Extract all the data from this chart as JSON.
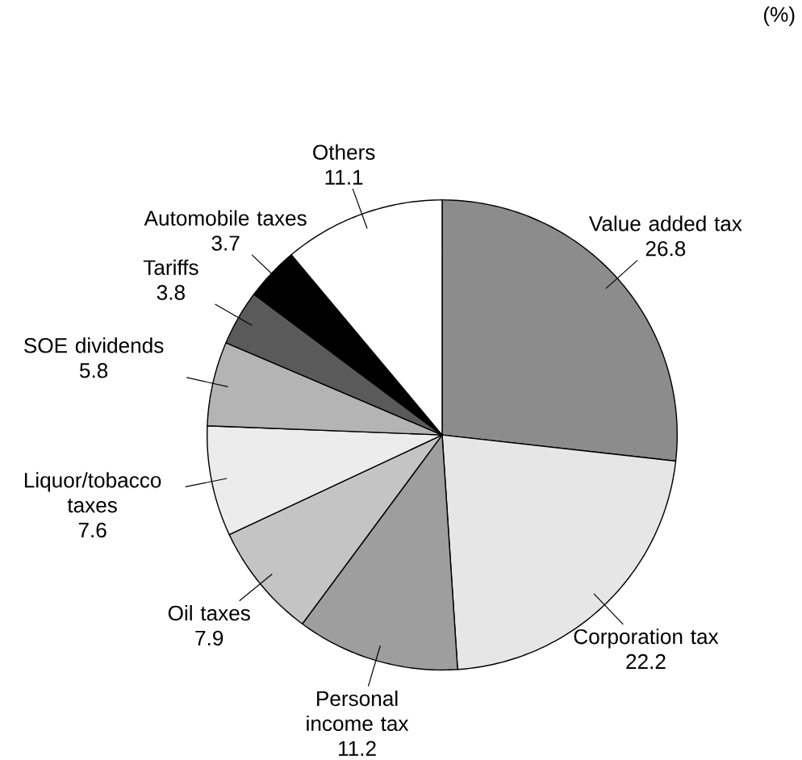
{
  "chart_data": {
    "type": "pie",
    "categories": [
      "Value added tax",
      "Corporation tax",
      "Personal income tax",
      "Oil taxes",
      "Liquor/tobacco taxes",
      "SOE dividends",
      "Tariffs",
      "Automobile taxes",
      "Others"
    ],
    "values": [
      26.8,
      22.2,
      11.2,
      7.9,
      7.6,
      5.8,
      3.8,
      3.7,
      11.1
    ],
    "colors": [
      "#8c8c8c",
      "#e6e6e6",
      "#9e9e9e",
      "#c4c4c4",
      "#ececec",
      "#b4b4b4",
      "#5a5a5a",
      "#000000",
      "#ffffff"
    ],
    "data_labels": true,
    "annotations": [
      "(%)"
    ]
  }
}
